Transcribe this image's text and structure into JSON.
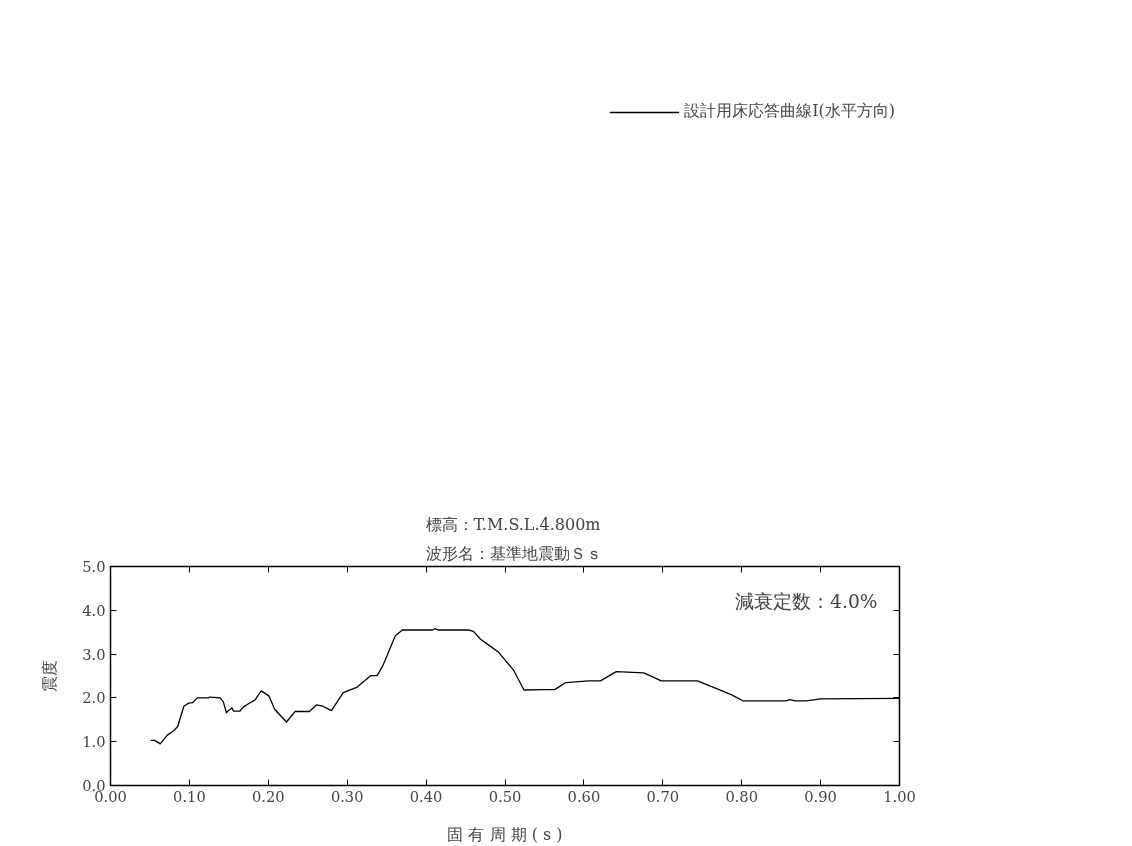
{
  "chart_data": {
    "type": "line",
    "xlabel": "固 有 周 期 ( s )",
    "ylabel": "震度",
    "annotations": [
      "標高：T.M.S.L.4.800m",
      "波形名：基準地震動Ｓｓ",
      "減衰定数：4.0%"
    ],
    "x": [
      0.051,
      0.056,
      0.063,
      0.072,
      0.08,
      0.085,
      0.093,
      0.099,
      0.104,
      0.11,
      0.124,
      0.126,
      0.139,
      0.143,
      0.147,
      0.15,
      0.154,
      0.156,
      0.164,
      0.169,
      0.177,
      0.183,
      0.191,
      0.201,
      0.208,
      0.223,
      0.234,
      0.252,
      0.261,
      0.269,
      0.28,
      0.295,
      0.312,
      0.33,
      0.338,
      0.345,
      0.361,
      0.37,
      0.408,
      0.411,
      0.416,
      0.454,
      0.46,
      0.469,
      0.479,
      0.492,
      0.511,
      0.524,
      0.545,
      0.563,
      0.577,
      0.606,
      0.621,
      0.641,
      0.676,
      0.698,
      0.744,
      0.786,
      0.802,
      0.856,
      0.861,
      0.868,
      0.882,
      0.9,
      1.0
    ],
    "series": [
      {
        "name": "設計用床応答曲線Ⅰ(水平方向)",
        "color": "#000000",
        "values": [
          1.03,
          1.03,
          0.95,
          1.15,
          1.25,
          1.34,
          1.81,
          1.88,
          1.89,
          2.0,
          2.0,
          2.02,
          2.0,
          1.91,
          1.66,
          1.72,
          1.77,
          1.7,
          1.7,
          1.8,
          1.89,
          1.95,
          2.16,
          2.04,
          1.74,
          1.45,
          1.69,
          1.69,
          1.84,
          1.81,
          1.71,
          2.12,
          2.24,
          2.51,
          2.51,
          2.73,
          3.42,
          3.55,
          3.55,
          3.58,
          3.55,
          3.55,
          3.52,
          3.34,
          3.21,
          3.04,
          2.63,
          2.18,
          2.19,
          2.19,
          2.35,
          2.39,
          2.39,
          2.6,
          2.57,
          2.39,
          2.39,
          2.08,
          1.93,
          1.93,
          1.96,
          1.93,
          1.93,
          1.98,
          1.99
        ]
      }
    ],
    "xlim": [
      0,
      1.0
    ],
    "ylim": [
      0,
      5.0
    ],
    "xticks": [
      {
        "value": 0,
        "label": "0.00"
      },
      {
        "value": 0.1,
        "label": "0.10"
      },
      {
        "value": 0.2,
        "label": "0.20"
      },
      {
        "value": 0.3,
        "label": "0.30"
      },
      {
        "value": 0.4,
        "label": "0.40"
      },
      {
        "value": 0.5,
        "label": "0.50"
      },
      {
        "value": 0.6,
        "label": "0.60"
      },
      {
        "value": 0.7,
        "label": "0.70"
      },
      {
        "value": 0.8,
        "label": "0.80"
      },
      {
        "value": 0.9,
        "label": "0.90"
      },
      {
        "value": 1.0,
        "label": "1.00"
      }
    ],
    "yticks": [
      {
        "value": 0,
        "label": "0.0"
      },
      {
        "value": 1,
        "label": "1.0"
      },
      {
        "value": 2,
        "label": "2.0"
      },
      {
        "value": 3,
        "label": "3.0"
      },
      {
        "value": 4,
        "label": "4.0"
      },
      {
        "value": 5,
        "label": "5.0"
      }
    ],
    "grid": false,
    "legend": "top right",
    "marker": "none",
    "line_style": "solid"
  }
}
